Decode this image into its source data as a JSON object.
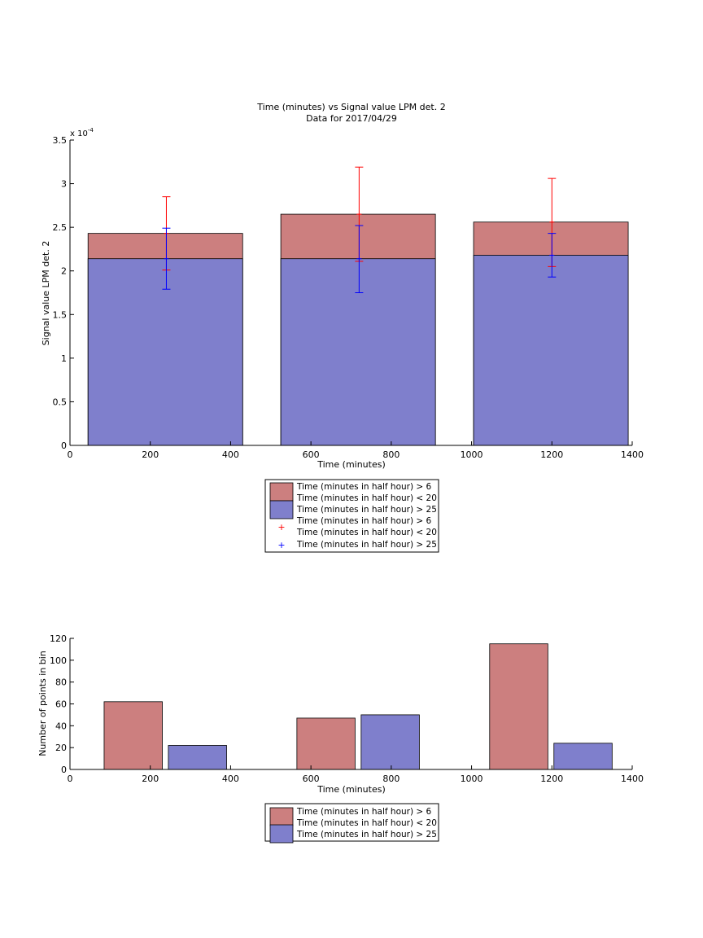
{
  "colors": {
    "red_fill": "#cc7f7f",
    "blue_fill": "#7f7fcc",
    "red_err": "#ff0000",
    "blue_err": "#0000ff",
    "axis": "#000000"
  },
  "chart_data": [
    {
      "type": "bar",
      "title": "Time (minutes) vs Signal value LPM det. 2",
      "subtitle": "Data for 2017/04/29",
      "xlabel": "Time (minutes)",
      "ylabel": "Signal value LPM det. 2",
      "exponent_label": "x 10",
      "exponent_power": "-4",
      "xlim": [
        0,
        1400
      ],
      "ylim": [
        0,
        3.5
      ],
      "xticks": [
        0,
        200,
        400,
        600,
        800,
        1000,
        1200,
        1400
      ],
      "yticks": [
        0,
        0.5,
        1,
        1.5,
        2,
        2.5,
        3,
        3.5
      ],
      "xtick_labels": [
        "0",
        "200",
        "400",
        "600",
        "800",
        "1000",
        "1200",
        "1400"
      ],
      "ytick_labels": [
        "0",
        "0.5",
        "1",
        "1.5",
        "2",
        "2.5",
        "3",
        "3.5"
      ],
      "bins": [
        {
          "x0": 45,
          "x1": 430,
          "center": 240
        },
        {
          "x0": 525,
          "x1": 910,
          "center": 720
        },
        {
          "x0": 1005,
          "x1": 1390,
          "center": 1200
        }
      ],
      "series": [
        {
          "name": "Time (minutes in half hour) > 6",
          "name2": "Time (minutes in half hour) < 20",
          "kind": "bar",
          "color": "#cc7f7f",
          "values": [
            2.43,
            2.65,
            2.56
          ]
        },
        {
          "name": "Time (minutes in half hour) > 25",
          "kind": "bar",
          "color": "#7f7fcc",
          "values": [
            2.14,
            2.14,
            2.18
          ]
        },
        {
          "name": "Time (minutes in half hour) > 6",
          "name2": "Time (minutes in half hour) < 20",
          "kind": "errorbar",
          "color": "#ff0000",
          "values": [
            2.43,
            2.65,
            2.56
          ],
          "lower": [
            2.01,
            2.11,
            2.05
          ],
          "upper": [
            2.85,
            3.19,
            3.06
          ]
        },
        {
          "name": "Time (minutes in half hour) > 25",
          "kind": "errorbar",
          "color": "#0000ff",
          "values": [
            2.14,
            2.14,
            2.18
          ],
          "lower": [
            1.79,
            1.75,
            1.93
          ],
          "upper": [
            2.49,
            2.52,
            2.43
          ]
        }
      ],
      "legend_position": "below"
    },
    {
      "type": "bar",
      "xlabel": "Time (minutes)",
      "ylabel": "Number of points in bin",
      "xlim": [
        0,
        1400
      ],
      "ylim": [
        0,
        120
      ],
      "xticks": [
        0,
        200,
        400,
        600,
        800,
        1000,
        1200,
        1400
      ],
      "yticks": [
        0,
        20,
        40,
        60,
        80,
        100,
        120
      ],
      "xtick_labels": [
        "0",
        "200",
        "400",
        "600",
        "800",
        "1000",
        "1200",
        "1400"
      ],
      "ytick_labels": [
        "0",
        "20",
        "40",
        "60",
        "80",
        "100",
        "120"
      ],
      "bars": [
        {
          "series": 0,
          "x0": 85,
          "x1": 230,
          "value": 62
        },
        {
          "series": 1,
          "x0": 245,
          "x1": 390,
          "value": 22
        },
        {
          "series": 0,
          "x0": 565,
          "x1": 710,
          "value": 47
        },
        {
          "series": 1,
          "x0": 725,
          "x1": 870,
          "value": 50
        },
        {
          "series": 0,
          "x0": 1045,
          "x1": 1190,
          "value": 115
        },
        {
          "series": 1,
          "x0": 1205,
          "x1": 1350,
          "value": 24
        }
      ],
      "series": [
        {
          "name": "Time (minutes in half hour) > 6",
          "name2": "Time (minutes in half hour) < 20",
          "color": "#cc7f7f"
        },
        {
          "name": "Time (minutes in half hour) > 25",
          "color": "#7f7fcc"
        }
      ],
      "legend_position": "below"
    }
  ]
}
